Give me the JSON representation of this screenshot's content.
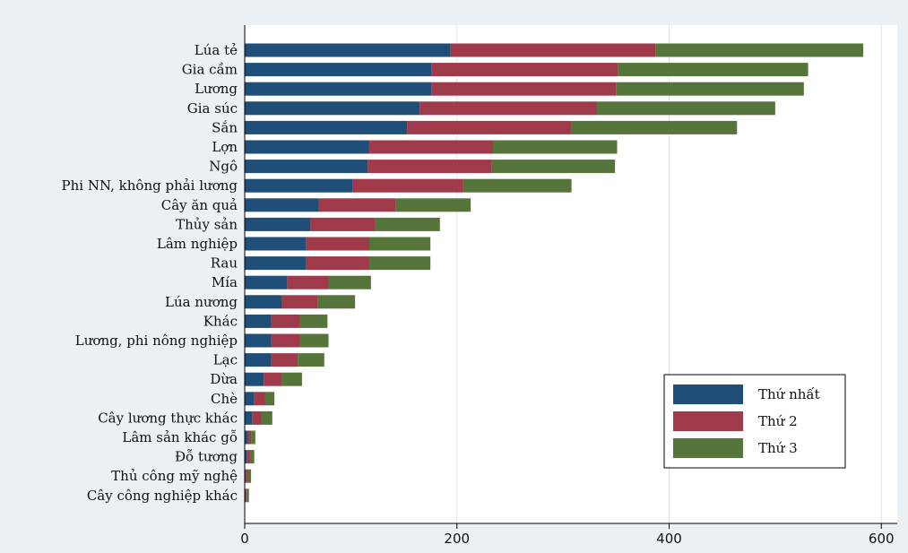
{
  "chart_data": {
    "type": "bar",
    "orientation": "horizontal",
    "stacked": true,
    "categories": [
      "Lúa tẻ",
      "Gia cầm",
      "Lương",
      "Gia súc",
      "Sắn",
      "Lợn",
      "Ngô",
      "Phi NN, không phải lương",
      "Cây ăn quả",
      "Thủy sản",
      "Lâm nghiệp",
      "Rau",
      "Mía",
      "Lúa nương",
      "Khác",
      "Lương, phi nông nghiệp",
      "Lạc",
      "Dừa",
      "Chè",
      "Cây lương thực khác",
      "Lâm sản khác gỗ",
      "Đỗ tương",
      "Thủ công mỹ nghệ",
      "Cây công nghiệp khác"
    ],
    "series": [
      {
        "name": "Thứ nhất",
        "color": "#1f4e79",
        "values": [
          194,
          176,
          176,
          165,
          153,
          117,
          116,
          102,
          70,
          62,
          58,
          58,
          40,
          35,
          25,
          25,
          25,
          18,
          9,
          7,
          3,
          2,
          1,
          1
        ]
      },
      {
        "name": "Thứ 2",
        "color": "#9e3a4a",
        "values": [
          193,
          176,
          174,
          167,
          155,
          117,
          117,
          104,
          72,
          61,
          59,
          59,
          39,
          34,
          27,
          27,
          25,
          17,
          10,
          9,
          3,
          3,
          2,
          1
        ]
      },
      {
        "name": "Thứ 3",
        "color": "#55753a",
        "values": [
          196,
          179,
          177,
          168,
          156,
          117,
          116,
          102,
          71,
          61,
          58,
          58,
          40,
          35,
          26,
          27,
          25,
          19,
          9,
          10,
          4,
          4,
          3,
          2
        ]
      }
    ],
    "x_ticks": [
      0,
      200,
      400,
      600
    ],
    "xlim": [
      0,
      615
    ],
    "xlabel": "",
    "ylabel": "",
    "title": "",
    "grid": true,
    "legend_position": "bottom-right"
  }
}
